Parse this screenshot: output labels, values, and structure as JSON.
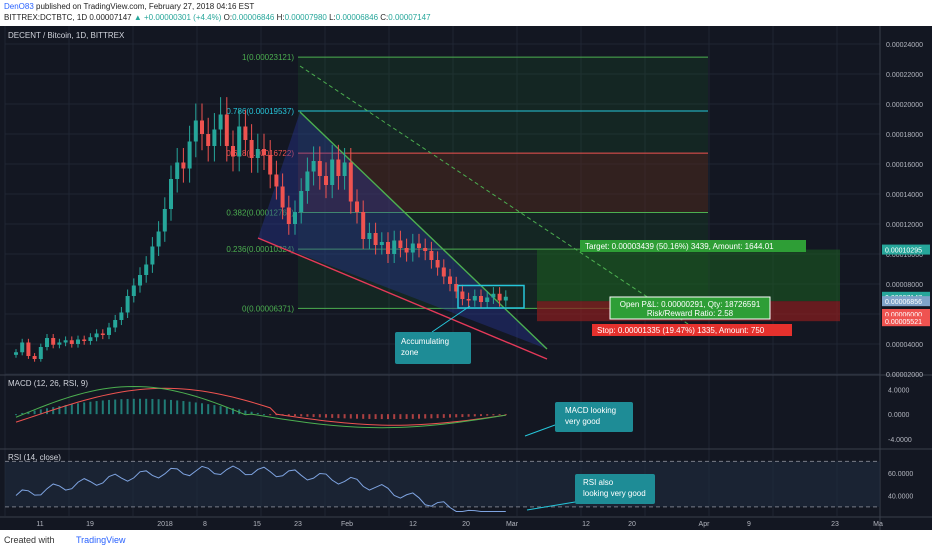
{
  "header": {
    "author": "DenO83",
    "published": "published on TradingView.com, February 27, 2018 04:16 EST",
    "symbol_line": "BITTREX:DCTBTC, 1D",
    "close_val": "0.00007147",
    "change": "▲ +0.00000301 (+4.4%)",
    "o_label": "O:",
    "o": "0.00006846",
    "h_label": "H:",
    "h": "0.00007980",
    "l_label": "L:",
    "l": "0.00006846",
    "c_label": "C:",
    "c": "0.00007147"
  },
  "footer": {
    "created": "Created with",
    "brand": "TradingView"
  },
  "chart_data": [
    {
      "type": "candlestick",
      "title": "DECENT / Bitcoin, 1D, BITTREX",
      "ylim": [
        2e-05,
        0.000252
      ],
      "y_ticks": [
        "0.00024000",
        "0.00022000",
        "0.00020000",
        "0.00018000",
        "0.00016000",
        "0.00014000",
        "0.00012000",
        "0.00010000",
        "0.00008000",
        "0.00006000",
        "0.00004000",
        "0.00002000"
      ],
      "x_ticks": [
        "11",
        "19",
        "2018",
        "8",
        "15",
        "23",
        "Feb",
        "12",
        "20",
        "Mar",
        "12",
        "20",
        "Apr",
        "9",
        "23",
        "Ma"
      ],
      "price_badges": [
        {
          "label": "0.00010295",
          "value": 0.00010295,
          "color": "#26a69a"
        },
        {
          "label": "0.00007147",
          "value": 7.147e-05,
          "color": "#26a69a"
        },
        {
          "label": "0.00006856",
          "value": 6.856e-05,
          "color": "#7fa3c8"
        },
        {
          "label": "0.00006000",
          "value": 6e-05,
          "color": "#ef5350"
        },
        {
          "label": "0.00005521",
          "value": 5.521e-05,
          "color": "#ef5350"
        }
      ],
      "fibonacci": [
        {
          "label": "1(0.00023121)",
          "value": 0.00023121,
          "color": "#4caf50"
        },
        {
          "label": "0.786(0.00019537)",
          "value": 0.00019537,
          "color": "#26c6da"
        },
        {
          "label": "0.618(0.00016722)",
          "value": 0.00016722,
          "color": "#ef5350"
        },
        {
          "label": "0.382(0.00012769)",
          "value": 0.00012769,
          "color": "#4caf50"
        },
        {
          "label": "0.236(0.00010324)",
          "value": 0.00010324,
          "color": "#4caf50"
        },
        {
          "label": "0(0.00006371)",
          "value": 6.371e-05,
          "color": "#4caf50"
        }
      ],
      "position": {
        "target": "Target: 0.00003439 (50.16%) 3439, Amount: 1644.01",
        "open_pl": "Open P&L: 0.00000291, Qty: 18726591",
        "risk_reward": "Risk/Reward Ratio: 2.58",
        "stop": "Stop: 0.00001335 (19.47%) 1335, Amount: 750"
      },
      "annotations": [
        "Accumulating zone"
      ],
      "candles": [
        [
          3.45e-05,
          4.1e-05,
          3.2e-05,
          3e-05,
          3.8e-05,
          4.4e-05,
          3.95e-05,
          4.1e-05,
          4.25e-05,
          4e-05,
          4.3e-05,
          4.2e-05,
          4.45e-05,
          4.7e-05,
          4.6e-05,
          5.1e-05,
          5.6e-05,
          6.1e-05,
          7.2e-05,
          7.9e-05,
          8.6e-05,
          9.3e-05,
          0.000105,
          0.000115,
          0.00013,
          0.00015,
          0.000161,
          0.000157,
          0.000175,
          0.000189,
          0.00018,
          0.000172,
          0.000183,
          0.000193,
          0.000172,
          0.000165,
          0.000185,
          0.000176,
          0.000164,
          0.00017,
          0.000166,
          0.000153,
          0.000145,
          0.000131,
          0.00012,
          0.000128,
          0.000142,
          0.000155,
          0.000162,
          0.000152,
          0.000146,
          0.000163,
          0.000152,
          0.000161,
          0.000135,
          0.000128,
          0.00011,
          0.000114,
          0.000106,
          0.000108,
          0.0001,
          0.000109,
          0.000104,
          0.000101,
          0.000107,
          0.000104,
          0.000102,
          9.6e-05,
          9.1e-05,
          8.5e-05,
          8e-05,
          7.5e-05,
          7e-05,
          6.9e-05,
          7.2e-05,
          6.8e-05,
          7.1e-05,
          7.35e-05,
          6.9e-05,
          7.15e-05
        ]
      ]
    },
    {
      "type": "line",
      "title": "MACD (12, 26, RSI, 9)",
      "ylim": [
        -5.5,
        6.2
      ],
      "y_ticks": [
        "4.0000",
        "0.0000",
        "-4.0000"
      ],
      "series": [
        {
          "name": "MACD",
          "color": "#4caf50"
        },
        {
          "name": "Signal",
          "color": "#ef5350"
        }
      ],
      "annotation": "MACD looking very good"
    },
    {
      "type": "line",
      "title": "RSI (14, close)",
      "ylim": [
        22,
        80
      ],
      "y_ticks": [
        "60.0000",
        "40.0000"
      ],
      "series": [
        {
          "name": "RSI",
          "color": "#7ea3e0"
        }
      ],
      "annotation": "RSI also looking very good"
    }
  ]
}
